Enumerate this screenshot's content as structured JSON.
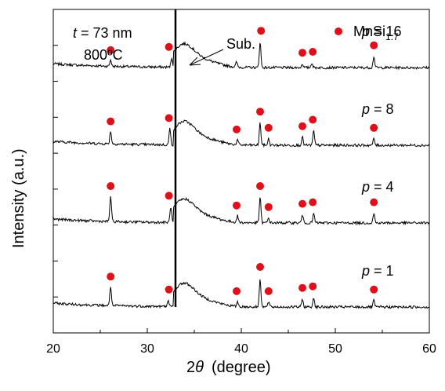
{
  "chart_data": {
    "type": "line",
    "title": "",
    "xlabel_symbol": "2θ",
    "xlabel_unit": "(degree)",
    "ylabel": "Intensity (a.u.)",
    "xlim": [
      20,
      60
    ],
    "x_ticks": [
      20,
      30,
      40,
      50,
      60
    ],
    "y_ticks_visible_labels": false,
    "grid": false,
    "sample_info": {
      "t_symbol": "t",
      "t_text": " = 73 nm",
      "temperature": "800ºC"
    },
    "substrate_label": "Sub.",
    "substrate_peak": 33.0,
    "legend": {
      "marker": "filled-circle",
      "marker_color": "#e0101a",
      "label_base": "MnSi",
      "label_sub": "1.7",
      "placement": "top-right"
    },
    "series": [
      {
        "name": "p = 16",
        "p_symbol": "p",
        "p_text": " = 16",
        "baseline": 0.82,
        "peaks": [
          {
            "x": 26.1,
            "h": 0.02
          },
          {
            "x": 32.6,
            "h": 0.03
          },
          {
            "x": 39.5,
            "h": 0.015
          },
          {
            "x": 42.0,
            "h": 0.08
          },
          {
            "x": 46.5,
            "h": 0.012
          },
          {
            "x": 47.5,
            "h": 0.015
          },
          {
            "x": 54.1,
            "h": 0.035
          }
        ],
        "markers": [
          26.1,
          32.3,
          42.1,
          46.5,
          47.6,
          54.1
        ]
      },
      {
        "name": "p = 8",
        "p_symbol": "p",
        "p_text": " = 8",
        "baseline": 0.58,
        "peaks": [
          {
            "x": 26.1,
            "h": 0.04
          },
          {
            "x": 32.4,
            "h": 0.05
          },
          {
            "x": 39.6,
            "h": 0.015
          },
          {
            "x": 42.0,
            "h": 0.07
          },
          {
            "x": 42.9,
            "h": 0.02
          },
          {
            "x": 46.5,
            "h": 0.025
          },
          {
            "x": 47.7,
            "h": 0.045
          },
          {
            "x": 54.1,
            "h": 0.02
          }
        ],
        "markers": [
          26.1,
          32.3,
          39.5,
          42.0,
          42.9,
          46.5,
          47.6,
          54.1
        ]
      },
      {
        "name": "p = 4",
        "p_symbol": "p",
        "p_text": " = 4",
        "baseline": 0.34,
        "peaks": [
          {
            "x": 26.1,
            "h": 0.08
          },
          {
            "x": 32.5,
            "h": 0.05
          },
          {
            "x": 39.6,
            "h": 0.02
          },
          {
            "x": 42.0,
            "h": 0.08
          },
          {
            "x": 42.9,
            "h": 0.015
          },
          {
            "x": 46.5,
            "h": 0.025
          },
          {
            "x": 47.7,
            "h": 0.03
          },
          {
            "x": 54.1,
            "h": 0.03
          }
        ],
        "markers": [
          26.1,
          32.3,
          39.5,
          42.0,
          42.9,
          46.5,
          47.6,
          54.1
        ]
      },
      {
        "name": "p = 1",
        "p_symbol": "p",
        "p_text": " = 1",
        "baseline": 0.08,
        "peaks": [
          {
            "x": 26.1,
            "h": 0.06
          },
          {
            "x": 32.2,
            "h": 0.02
          },
          {
            "x": 39.6,
            "h": 0.015
          },
          {
            "x": 42.0,
            "h": 0.09
          },
          {
            "x": 42.9,
            "h": 0.015
          },
          {
            "x": 46.5,
            "h": 0.025
          },
          {
            "x": 47.7,
            "h": 0.03
          },
          {
            "x": 54.1,
            "h": 0.02
          }
        ],
        "markers": [
          26.1,
          32.3,
          39.5,
          42.0,
          42.9,
          46.5,
          47.6,
          54.1
        ]
      }
    ]
  }
}
